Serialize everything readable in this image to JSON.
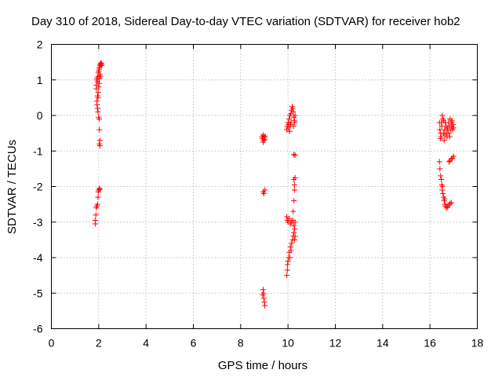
{
  "chart_data": {
    "type": "scatter",
    "title": "Day 310 of 2018, Sidereal Day-to-day VTEC variation (SDTVAR) for receiver hob2",
    "xlabel": "GPS time / hours",
    "ylabel": "SDTVAR / TECUs",
    "xlim": [
      0,
      18
    ],
    "ylim": [
      -6,
      2
    ],
    "xticks": [
      0,
      2,
      4,
      6,
      8,
      10,
      12,
      14,
      16,
      18
    ],
    "yticks": [
      -6,
      -5,
      -4,
      -3,
      -2,
      -1,
      0,
      1,
      2
    ],
    "grid": true,
    "marker": "+",
    "color": "#ff0000",
    "series": [
      {
        "name": "SDTVAR",
        "points": [
          [
            1.9,
            0.75
          ],
          [
            1.9,
            0.85
          ],
          [
            1.92,
            1.0
          ],
          [
            1.93,
            1.05
          ],
          [
            1.95,
            0.95
          ],
          [
            1.97,
            1.1
          ],
          [
            1.98,
            1.2
          ],
          [
            2.0,
            1.25
          ],
          [
            2.02,
            1.3
          ],
          [
            2.03,
            1.35
          ],
          [
            2.05,
            1.4
          ],
          [
            2.07,
            1.45
          ],
          [
            2.08,
            1.42
          ],
          [
            2.1,
            1.48
          ],
          [
            2.12,
            1.45
          ],
          [
            2.13,
            1.4
          ],
          [
            1.95,
            0.55
          ],
          [
            1.97,
            0.5
          ],
          [
            1.98,
            0.65
          ],
          [
            2.0,
            0.8
          ],
          [
            2.02,
            0.9
          ],
          [
            2.03,
            1.05
          ],
          [
            2.05,
            1.15
          ],
          [
            2.07,
            1.1
          ],
          [
            1.92,
            0.4
          ],
          [
            1.93,
            0.3
          ],
          [
            1.95,
            0.2
          ],
          [
            1.97,
            0.1
          ],
          [
            2.0,
            -0.05
          ],
          [
            2.02,
            -0.1
          ],
          [
            2.03,
            -0.4
          ],
          [
            2.05,
            -0.7
          ],
          [
            2.05,
            -0.85
          ],
          [
            2.03,
            -0.8
          ],
          [
            1.85,
            -2.95
          ],
          [
            1.86,
            -3.05
          ],
          [
            1.88,
            -2.8
          ],
          [
            1.9,
            -2.6
          ],
          [
            1.92,
            -2.55
          ],
          [
            1.95,
            -2.5
          ],
          [
            1.97,
            -2.3
          ],
          [
            1.98,
            -2.15
          ],
          [
            2.0,
            -2.1
          ],
          [
            2.03,
            -2.05
          ],
          [
            2.05,
            -2.08
          ],
          [
            8.9,
            -0.6
          ],
          [
            8.92,
            -0.65
          ],
          [
            8.95,
            -0.55
          ],
          [
            8.97,
            -0.7
          ],
          [
            9.0,
            -0.62
          ],
          [
            9.02,
            -0.68
          ],
          [
            9.03,
            -0.58
          ],
          [
            8.95,
            -0.75
          ],
          [
            8.95,
            -2.15
          ],
          [
            8.98,
            -2.2
          ],
          [
            9.02,
            -2.1
          ],
          [
            8.95,
            -4.9
          ],
          [
            8.97,
            -5.0
          ],
          [
            8.98,
            -5.15
          ],
          [
            9.0,
            -5.25
          ],
          [
            9.02,
            -5.35
          ],
          [
            8.93,
            -5.05
          ],
          [
            9.95,
            -0.4
          ],
          [
            9.97,
            -0.3
          ],
          [
            10.0,
            -0.2
          ],
          [
            10.02,
            -0.35
          ],
          [
            10.05,
            -0.1
          ],
          [
            10.08,
            0.0
          ],
          [
            10.1,
            -0.25
          ],
          [
            10.12,
            0.05
          ],
          [
            10.15,
            0.15
          ],
          [
            10.18,
            0.25
          ],
          [
            10.2,
            0.2
          ],
          [
            10.22,
            0.1
          ],
          [
            10.25,
            -0.05
          ],
          [
            10.27,
            -0.15
          ],
          [
            10.3,
            0.0
          ],
          [
            10.07,
            -0.45
          ],
          [
            10.13,
            -0.2
          ],
          [
            10.23,
            -0.3
          ],
          [
            10.28,
            -0.2
          ],
          [
            10.03,
            -0.25
          ],
          [
            10.25,
            -1.1
          ],
          [
            10.3,
            -1.12
          ],
          [
            10.25,
            -1.8
          ],
          [
            10.27,
            -1.95
          ],
          [
            10.28,
            -2.1
          ],
          [
            10.25,
            -2.4
          ],
          [
            10.22,
            -2.7
          ],
          [
            10.3,
            -1.75
          ],
          [
            9.95,
            -2.85
          ],
          [
            9.97,
            -2.95
          ],
          [
            10.0,
            -3.0
          ],
          [
            10.05,
            -2.9
          ],
          [
            10.1,
            -3.05
          ],
          [
            10.15,
            -3.0
          ],
          [
            10.2,
            -2.95
          ],
          [
            10.25,
            -3.1
          ],
          [
            10.3,
            -3.0
          ],
          [
            10.28,
            -3.2
          ],
          [
            10.25,
            -3.3
          ],
          [
            10.22,
            -3.4
          ],
          [
            10.2,
            -3.5
          ],
          [
            10.15,
            -3.6
          ],
          [
            10.1,
            -3.7
          ],
          [
            10.05,
            -3.85
          ],
          [
            10.02,
            -4.0
          ],
          [
            10.0,
            -4.1
          ],
          [
            9.98,
            -4.2
          ],
          [
            9.97,
            -4.35
          ],
          [
            9.95,
            -4.5
          ],
          [
            10.3,
            -3.4
          ],
          [
            10.28,
            -3.5
          ],
          [
            10.08,
            -4.0
          ],
          [
            10.13,
            -3.8
          ],
          [
            16.4,
            -0.2
          ],
          [
            16.42,
            -0.4
          ],
          [
            16.45,
            -0.5
          ],
          [
            16.47,
            -0.6
          ],
          [
            16.5,
            -0.3
          ],
          [
            16.52,
            0.0
          ],
          [
            16.55,
            -0.1
          ],
          [
            16.57,
            -0.5
          ],
          [
            16.6,
            -0.7
          ],
          [
            16.62,
            -0.4
          ],
          [
            16.65,
            -0.2
          ],
          [
            16.68,
            -0.3
          ],
          [
            16.7,
            -0.5
          ],
          [
            16.72,
            -0.6
          ],
          [
            16.75,
            -0.4
          ],
          [
            16.78,
            -0.2
          ],
          [
            16.8,
            -0.5
          ],
          [
            16.82,
            -0.3
          ],
          [
            16.85,
            -0.1
          ],
          [
            16.88,
            -0.4
          ],
          [
            16.9,
            -0.2
          ],
          [
            16.92,
            -0.3
          ],
          [
            16.95,
            -0.4
          ],
          [
            16.97,
            -0.25
          ],
          [
            17.0,
            -0.35
          ],
          [
            16.48,
            -0.2
          ],
          [
            16.58,
            -0.15
          ],
          [
            16.63,
            -0.55
          ],
          [
            16.73,
            -0.35
          ],
          [
            16.83,
            -0.6
          ],
          [
            16.93,
            -0.15
          ],
          [
            16.45,
            -0.65
          ],
          [
            16.8,
            -1.3
          ],
          [
            16.85,
            -1.28
          ],
          [
            16.9,
            -1.22
          ],
          [
            16.95,
            -1.2
          ],
          [
            17.0,
            -1.15
          ],
          [
            16.4,
            -1.3
          ],
          [
            16.42,
            -1.5
          ],
          [
            16.45,
            -1.7
          ],
          [
            16.48,
            -1.8
          ],
          [
            16.5,
            -1.95
          ],
          [
            16.52,
            -2.1
          ],
          [
            16.55,
            -2.2
          ],
          [
            16.58,
            -2.3
          ],
          [
            16.6,
            -2.4
          ],
          [
            16.63,
            -2.5
          ],
          [
            16.65,
            -2.55
          ],
          [
            16.7,
            -2.6
          ],
          [
            16.75,
            -2.58
          ],
          [
            16.8,
            -2.52
          ],
          [
            16.85,
            -2.48
          ],
          [
            16.9,
            -2.45
          ],
          [
            16.53,
            -2.0
          ],
          [
            16.62,
            -2.35
          ]
        ]
      }
    ]
  }
}
